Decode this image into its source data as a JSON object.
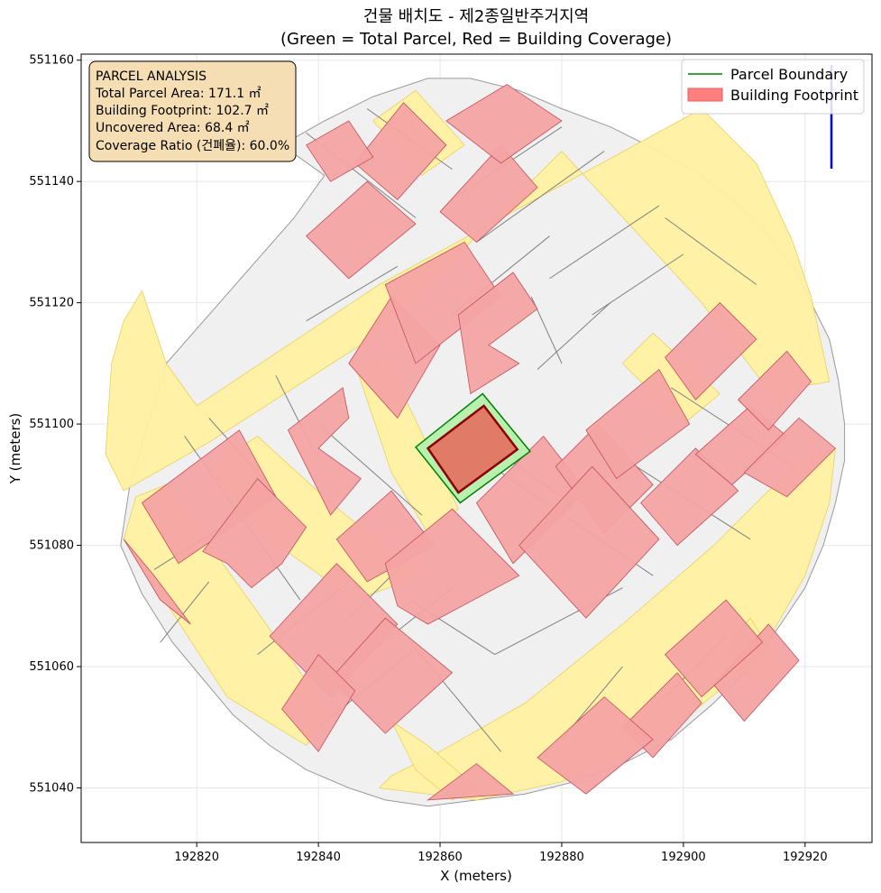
{
  "chart_data": {
    "type": "map",
    "title_line1": "건물 배치도 - 제2종일반주거지역",
    "title_line2": "(Green = Total Parcel, Red = Building Coverage)",
    "xlabel": "X (meters)",
    "ylabel": "Y (meters)",
    "xlim": [
      192801,
      192931
    ],
    "ylim": [
      551031,
      551161
    ],
    "xticks": [
      192820,
      192840,
      192860,
      192880,
      192900,
      192920
    ],
    "yticks": [
      551040,
      551060,
      551080,
      551100,
      551120,
      551140,
      551160
    ],
    "grid": true,
    "legend_position": "top-right",
    "legend": [
      {
        "label": "Parcel Boundary",
        "color": "#008000",
        "kind": "line"
      },
      {
        "label": "Building Footprint",
        "color": "#ff7f7f",
        "kind": "patch"
      }
    ],
    "annotation": {
      "lines": [
        "PARCEL ANALYSIS",
        "Total Parcel Area: 171.1 ㎡",
        "Building Footprint: 102.7 ㎡",
        "Uncovered Area: 68.4 ㎡",
        "Coverage Ratio (건폐율): 60.0%"
      ]
    },
    "target_parcel": {
      "area_m2": 171.1,
      "outline_color": "#008000",
      "fill_color": "#b8f0b0",
      "polygon": [
        [
          192867.0,
          551105.0
        ],
        [
          192874.8,
          551095.5
        ],
        [
          192863.3,
          551087.0
        ],
        [
          192856.0,
          551096.2
        ]
      ]
    },
    "target_building": {
      "area_m2": 102.7,
      "outline_color": "#8b0000",
      "fill_color": "#e07b67",
      "polygon": [
        [
          192867.2,
          551103.0
        ],
        [
          192872.7,
          551095.8
        ],
        [
          192863.0,
          551088.7
        ],
        [
          192858.0,
          551096.0
        ]
      ]
    },
    "coverage_ratio_percent": 60.0,
    "north_arrow_color": "#0000ff",
    "colors": {
      "road_fill": "#fff0a0",
      "parcel_fill": "#f0f0f0",
      "parcel_edge": "#808080",
      "building_fill": "#f4a3a3",
      "building_edge": "#c0505a",
      "overlap_fill": "#fbb26a"
    },
    "site_outline": [
      [
        192807.5,
        551080
      ],
      [
        192811,
        551072
      ],
      [
        192816,
        551064
      ],
      [
        192821,
        551058
      ],
      [
        192826,
        551052
      ],
      [
        192832,
        551047
      ],
      [
        192838,
        551043
      ],
      [
        192845,
        551040
      ],
      [
        192851,
        551038
      ],
      [
        192858,
        551037
      ],
      [
        192866,
        551038
      ],
      [
        192874,
        551039
      ],
      [
        192882,
        551041
      ],
      [
        192890,
        551044
      ],
      [
        192898,
        551048
      ],
      [
        192905,
        551054
      ],
      [
        192911,
        551060
      ],
      [
        192916,
        551067
      ],
      [
        192920,
        551073
      ],
      [
        192923,
        551080
      ],
      [
        192925,
        551087
      ],
      [
        192926.5,
        551094
      ],
      [
        192926.5,
        551100
      ],
      [
        192925.5,
        551107
      ],
      [
        192924,
        551114
      ],
      [
        192921,
        551120
      ],
      [
        192918,
        551126
      ],
      [
        192914,
        551131
      ],
      [
        192909,
        551136
      ],
      [
        192903,
        551141
      ],
      [
        192896,
        551145
      ],
      [
        192888,
        551149
      ],
      [
        192880,
        551152
      ],
      [
        192873,
        551155
      ],
      [
        192865,
        551157
      ],
      [
        192858,
        551157
      ],
      [
        192849,
        551154
      ],
      [
        192841,
        551150
      ],
      [
        192834,
        551146
      ],
      [
        192841,
        551141
      ],
      [
        192836,
        551134
      ],
      [
        192815,
        551110
      ],
      [
        192809,
        551090
      ]
    ],
    "roads": [
      [
        [
          192806,
          551110
        ],
        [
          192808,
          551117
        ],
        [
          192811,
          551122
        ],
        [
          192815,
          551110
        ],
        [
          192820,
          551103
        ],
        [
          192850,
          551123
        ],
        [
          192903,
          551152
        ],
        [
          192912,
          551143
        ],
        [
          192918,
          551130
        ],
        [
          192921,
          551121
        ],
        [
          192924,
          551107
        ],
        [
          192918,
          551106
        ],
        [
          192916,
          551103
        ],
        [
          192903,
          551120
        ],
        [
          192880,
          551145
        ],
        [
          192850,
          551115
        ],
        [
          192822,
          551097
        ],
        [
          192808,
          551089
        ],
        [
          192805,
          551095
        ]
      ],
      [
        [
          192810,
          551088
        ],
        [
          192815,
          551090
        ],
        [
          192830,
          551069
        ],
        [
          192842,
          551052
        ],
        [
          192838,
          551047
        ],
        [
          192825,
          551055
        ],
        [
          192814,
          551072
        ],
        [
          192808,
          551081
        ]
      ],
      [
        [
          192822,
          551093
        ],
        [
          192830,
          551098
        ],
        [
          192842,
          551087
        ],
        [
          192857,
          551075
        ],
        [
          192846,
          551071
        ],
        [
          192832,
          551081
        ]
      ],
      [
        [
          192846,
          551110
        ],
        [
          192851,
          551111
        ],
        [
          192863,
          551086
        ],
        [
          192858,
          551082
        ],
        [
          192852,
          551092
        ]
      ],
      [
        [
          192850,
          551040
        ],
        [
          192866,
          551038
        ],
        [
          192880,
          551041
        ],
        [
          192896,
          551048
        ],
        [
          192912,
          551061
        ],
        [
          192920,
          551075
        ],
        [
          192924,
          551087
        ],
        [
          192925,
          551096
        ],
        [
          192918,
          551093
        ],
        [
          192905,
          551080
        ],
        [
          192890,
          551067
        ],
        [
          192874,
          551054
        ],
        [
          192860,
          551046
        ],
        [
          192852,
          551042
        ]
      ],
      [
        [
          192849,
          551150
        ],
        [
          192856,
          551155
        ],
        [
          192864,
          551146
        ],
        [
          192857,
          551141
        ]
      ],
      [
        [
          192890,
          551110
        ],
        [
          192895,
          551115
        ],
        [
          192906,
          551105
        ],
        [
          192900,
          551100
        ]
      ],
      [
        [
          192852,
          551051
        ],
        [
          192858,
          551047
        ],
        [
          192866,
          551040
        ],
        [
          192862,
          551038
        ],
        [
          192856,
          551043
        ]
      ],
      [
        [
          192907,
          551063
        ],
        [
          192911,
          551068
        ],
        [
          192916,
          551060
        ],
        [
          192912,
          551057
        ]
      ]
    ],
    "parcel_lines": [
      [
        [
          192818,
          551098
        ],
        [
          192837,
          551071
        ]
      ],
      [
        [
          192822,
          551101
        ],
        [
          192830,
          551092
        ]
      ],
      [
        [
          192833,
          551108
        ],
        [
          192839,
          551096
        ]
      ],
      [
        [
          192840,
          551100
        ],
        [
          192857,
          551085
        ]
      ],
      [
        [
          192813,
          551076
        ],
        [
          192832,
          551088
        ]
      ],
      [
        [
          192830,
          551062
        ],
        [
          192845,
          551074
        ]
      ],
      [
        [
          192845,
          551068
        ],
        [
          192855,
          551078
        ]
      ],
      [
        [
          192855,
          551071
        ],
        [
          192869,
          551062
        ]
      ],
      [
        [
          192869,
          551062
        ],
        [
          192890,
          551073
        ]
      ],
      [
        [
          192843,
          551058
        ],
        [
          192862,
          551073
        ]
      ],
      [
        [
          192870,
          551092
        ],
        [
          192895,
          551075
        ]
      ],
      [
        [
          192886,
          551097
        ],
        [
          192911,
          551081
        ]
      ],
      [
        [
          192898,
          551106
        ],
        [
          192918,
          551093
        ]
      ],
      [
        [
          192862,
          551137
        ],
        [
          192880,
          551149
        ]
      ],
      [
        [
          192878,
          551124
        ],
        [
          192896,
          551136
        ]
      ],
      [
        [
          192885,
          551118
        ],
        [
          192900,
          551128
        ]
      ],
      [
        [
          192876,
          551109
        ],
        [
          192888,
          551120
        ]
      ],
      [
        [
          192862,
          551118
        ],
        [
          192878,
          551131
        ]
      ],
      [
        [
          192866,
          551098
        ],
        [
          192880,
          551088
        ]
      ],
      [
        [
          192840,
          551050
        ],
        [
          192856,
          551063
        ]
      ],
      [
        [
          192856,
          551063
        ],
        [
          192870,
          551046
        ]
      ],
      [
        [
          192880,
          551048
        ],
        [
          192890,
          551060
        ]
      ],
      [
        [
          192897,
          551055
        ],
        [
          192907,
          551065
        ]
      ],
      [
        [
          192838,
          551148
        ],
        [
          192856,
          551134
        ]
      ],
      [
        [
          192848,
          551152
        ],
        [
          192862,
          551142
        ]
      ],
      [
        [
          192866,
          551130
        ],
        [
          192887,
          551145
        ]
      ],
      [
        [
          192897,
          551134
        ],
        [
          192912,
          551123
        ]
      ],
      [
        [
          192875,
          551121
        ],
        [
          192880,
          551110
        ]
      ],
      [
        [
          192814,
          551064
        ],
        [
          192822,
          551074
        ]
      ],
      [
        [
          192838,
          551117
        ],
        [
          192853,
          551126
        ]
      ]
    ],
    "buildings": [
      [
        [
          192811,
          551087
        ],
        [
          192827,
          551099
        ],
        [
          192833,
          551088
        ],
        [
          192817,
          551077
        ]
      ],
      [
        [
          192821,
          551079
        ],
        [
          192830,
          551091
        ],
        [
          192838,
          551083
        ],
        [
          192834,
          551077
        ],
        [
          192829,
          551073
        ],
        [
          192825,
          551077
        ]
      ],
      [
        [
          192832,
          551065
        ],
        [
          192843,
          551077
        ],
        [
          192853,
          551067
        ],
        [
          192842,
          551055
        ]
      ],
      [
        [
          192835,
          551099
        ],
        [
          192844,
          551106
        ],
        [
          192845,
          551101
        ],
        [
          192840,
          551096
        ],
        [
          192847,
          551091
        ],
        [
          192842,
          551085
        ]
      ],
      [
        [
          192843,
          551081
        ],
        [
          192852,
          551089
        ],
        [
          192859,
          551080
        ],
        [
          192848,
          551074
        ]
      ],
      [
        [
          192851,
          551077
        ],
        [
          192862,
          551086
        ],
        [
          192873,
          551075
        ],
        [
          192858,
          551067
        ],
        [
          192853,
          551070
        ]
      ],
      [
        [
          192842,
          551058
        ],
        [
          192851,
          551068
        ],
        [
          192862,
          551059
        ],
        [
          192851,
          551049
        ]
      ],
      [
        [
          192845,
          551110
        ],
        [
          192852,
          551121
        ],
        [
          192860,
          551113
        ],
        [
          192853,
          551101
        ]
      ],
      [
        [
          192851,
          551123
        ],
        [
          192864,
          551130
        ],
        [
          192870,
          551121
        ],
        [
          192856,
          551110
        ]
      ],
      [
        [
          192863,
          551118
        ],
        [
          192872,
          551125
        ],
        [
          192876,
          551119
        ],
        [
          192868,
          551113
        ],
        [
          192873,
          551110
        ],
        [
          192865,
          551105
        ]
      ],
      [
        [
          192860,
          551135
        ],
        [
          192870,
          551146
        ],
        [
          192876,
          551139
        ],
        [
          192866,
          551130
        ]
      ],
      [
        [
          192861,
          551150
        ],
        [
          192871,
          551156
        ],
        [
          192880,
          551150
        ],
        [
          192870,
          551143
        ]
      ],
      [
        [
          192838,
          551131
        ],
        [
          192848,
          551140
        ],
        [
          192856,
          551133
        ],
        [
          192845,
          551124
        ]
      ],
      [
        [
          192846,
          551143
        ],
        [
          192854,
          551153
        ],
        [
          192861,
          551146
        ],
        [
          192853,
          551137
        ]
      ],
      [
        [
          192866,
          551087
        ],
        [
          192877,
          551098
        ],
        [
          192884,
          551089
        ],
        [
          192872,
          551077
        ]
      ],
      [
        [
          192879,
          551093
        ],
        [
          192886,
          551100
        ],
        [
          192895,
          551090
        ],
        [
          192887,
          551082
        ]
      ],
      [
        [
          192884,
          551099
        ],
        [
          192896,
          551109
        ],
        [
          192901,
          551100
        ],
        [
          192889,
          551091
        ]
      ],
      [
        [
          192873,
          551080
        ],
        [
          192885,
          551093
        ],
        [
          192896,
          551081
        ],
        [
          192884,
          551068
        ]
      ],
      [
        [
          192893,
          551087
        ],
        [
          192902,
          551096
        ],
        [
          192909,
          551089
        ],
        [
          192899,
          551080
        ]
      ],
      [
        [
          192897,
          551111
        ],
        [
          192906,
          551120
        ],
        [
          192912,
          551114
        ],
        [
          192902,
          551104
        ]
      ],
      [
        [
          192902,
          551095
        ],
        [
          192911,
          551103
        ],
        [
          192917,
          551098
        ],
        [
          192908,
          551090
        ]
      ],
      [
        [
          192910,
          551092
        ],
        [
          192919,
          551101
        ],
        [
          192925,
          551096
        ],
        [
          192917,
          551088
        ]
      ],
      [
        [
          192909,
          551104
        ],
        [
          192917,
          551112
        ],
        [
          192921,
          551107
        ],
        [
          192914,
          551099
        ]
      ],
      [
        [
          192905,
          551057
        ],
        [
          192914,
          551067
        ],
        [
          192919,
          551061
        ],
        [
          192910,
          551051
        ]
      ],
      [
        [
          192897,
          551062
        ],
        [
          192907,
          551071
        ],
        [
          192913,
          551064
        ],
        [
          192903,
          551055
        ]
      ],
      [
        [
          192890,
          551050
        ],
        [
          192899,
          551059
        ],
        [
          192903,
          551054
        ],
        [
          192895,
          551045
        ]
      ],
      [
        [
          192876,
          551045
        ],
        [
          192887,
          551055
        ],
        [
          192895,
          551048
        ],
        [
          192884,
          551039
        ]
      ],
      [
        [
          192858,
          551038
        ],
        [
          192866,
          551044
        ],
        [
          192872,
          551039
        ]
      ],
      [
        [
          192834,
          551053
        ],
        [
          192840,
          551062
        ],
        [
          192846,
          551056
        ],
        [
          192840,
          551046
        ]
      ],
      [
        [
          192808,
          551081
        ],
        [
          192814,
          551071
        ],
        [
          192819,
          551067
        ],
        [
          192813,
          551075
        ]
      ],
      [
        [
          192838,
          551146
        ],
        [
          192845,
          551150
        ],
        [
          192849,
          551144
        ],
        [
          192842,
          551140
        ]
      ]
    ]
  }
}
